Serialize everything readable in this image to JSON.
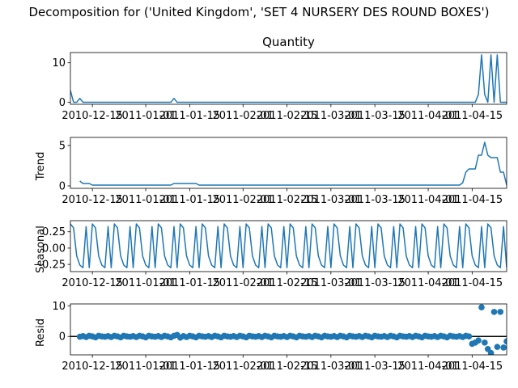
{
  "figure": {
    "suptitle": "Decomposition for ('United Kingdom', 'SET 4 NURSERY DES ROUND BOXES')",
    "line_color": "#1f77b4"
  },
  "x_tick_labels": [
    "2010-12-15",
    "2011-01-01",
    "2011-01-15",
    "2011-02-01",
    "2011-02-15",
    "2011-03-01",
    "2011-03-15",
    "2011-04-01",
    "2011-04-15"
  ],
  "chart_data": [
    {
      "type": "line",
      "title": "Quantity",
      "ylabel": "",
      "x_start": "2010-12-08",
      "x_end": "2011-04-26",
      "ylim": [
        -0.5,
        12.6
      ],
      "yticks": [
        0,
        10
      ],
      "values": [
        3,
        0,
        0,
        1,
        0,
        0,
        0,
        0,
        0,
        0,
        0,
        0,
        0,
        0,
        0,
        0,
        0,
        0,
        0,
        0,
        0,
        0,
        0,
        0,
        0,
        0,
        0,
        0,
        0,
        0,
        0,
        0,
        0,
        1,
        0,
        0,
        0,
        0,
        0,
        0,
        0,
        0,
        0,
        0,
        0,
        0,
        0,
        0,
        0,
        0,
        0,
        0,
        0,
        0,
        0,
        0,
        0,
        0,
        0,
        0,
        0,
        0,
        0,
        0,
        0,
        0,
        0,
        0,
        0,
        0,
        0,
        0,
        0,
        0,
        0,
        0,
        0,
        0,
        0,
        0,
        0,
        0,
        0,
        0,
        0,
        0,
        0,
        0,
        0,
        0,
        0,
        0,
        0,
        0,
        0,
        0,
        0,
        0,
        0,
        0,
        0,
        0,
        0,
        0,
        0,
        0,
        0,
        0,
        0,
        0,
        0,
        0,
        0,
        0,
        0,
        0,
        0,
        0,
        0,
        0,
        0,
        0,
        0,
        0,
        0,
        0,
        0,
        0,
        0,
        0,
        2,
        12,
        2,
        0,
        12,
        0,
        12,
        0,
        0,
        0,
        0,
        0,
        0,
        0,
        0,
        10
      ]
    },
    {
      "type": "line",
      "title": "",
      "ylabel": "Trend",
      "x_start": "2010-12-08",
      "x_end": "2011-04-26",
      "ylim": [
        -0.3,
        6.0
      ],
      "yticks": [
        0,
        5
      ],
      "values": [
        null,
        null,
        null,
        0.6,
        0.3,
        0.3,
        0.3,
        0.1,
        0.1,
        0.1,
        0.1,
        0.1,
        0.1,
        0.1,
        0.1,
        0.1,
        0.1,
        0.1,
        0.1,
        0.1,
        0.1,
        0.1,
        0.1,
        0.1,
        0.1,
        0.1,
        0.1,
        0.1,
        0.1,
        0.1,
        0.1,
        0.1,
        0.1,
        0.3,
        0.3,
        0.3,
        0.3,
        0.3,
        0.3,
        0.3,
        0.3,
        0.1,
        0.1,
        0.1,
        0.1,
        0.1,
        0.1,
        0.1,
        0.1,
        0.1,
        0.1,
        0.1,
        0.1,
        0.1,
        0.1,
        0.1,
        0.1,
        0.1,
        0.1,
        0.1,
        0.1,
        0.1,
        0.1,
        0.1,
        0.1,
        0.1,
        0.1,
        0.1,
        0.1,
        0.1,
        0.1,
        0.1,
        0.1,
        0.1,
        0.1,
        0.1,
        0.1,
        0.1,
        0.1,
        0.1,
        0.1,
        0.1,
        0.1,
        0.1,
        0.1,
        0.1,
        0.1,
        0.1,
        0.1,
        0.1,
        0.1,
        0.1,
        0.1,
        0.1,
        0.1,
        0.1,
        0.1,
        0.1,
        0.1,
        0.1,
        0.1,
        0.1,
        0.1,
        0.1,
        0.1,
        0.1,
        0.1,
        0.1,
        0.1,
        0.1,
        0.1,
        0.1,
        0.1,
        0.1,
        0.1,
        0.1,
        0.1,
        0.1,
        0.1,
        0.1,
        0.1,
        0.1,
        0.1,
        0.1,
        0.1,
        0.4,
        1.7,
        2.1,
        2.1,
        2.1,
        3.8,
        3.8,
        5.4,
        3.8,
        3.5,
        3.5,
        3.5,
        1.7,
        1.7,
        0.1,
        0.1,
        0.1,
        1.4,
        null,
        null,
        null
      ]
    },
    {
      "type": "line",
      "title": "",
      "ylabel": "Seasonal",
      "x_start": "2010-12-08",
      "x_end": "2011-04-26",
      "ylim": [
        -0.36,
        0.42
      ],
      "yticks": [
        0.25,
        0.0,
        -0.25
      ],
      "ytick_labels": [
        "0.25",
        "0.00",
        "−0.25"
      ],
      "period_pattern": [
        0.37,
        0.31,
        -0.12,
        -0.26,
        -0.3,
        0.33,
        -0.3
      ]
    },
    {
      "type": "scatter",
      "title": "",
      "ylabel": "Resid",
      "x_start": "2010-12-08",
      "x_end": "2011-04-26",
      "ylim": [
        -6.0,
        10.6
      ],
      "yticks": [
        0,
        10
      ],
      "zero_line": true,
      "values": [
        null,
        null,
        null,
        -0.1,
        0.1,
        -0.2,
        0.2,
        0.0,
        -0.3,
        0.2,
        0.0,
        -0.1,
        0.1,
        -0.2,
        0.2,
        0.0,
        -0.3,
        0.2,
        0.0,
        -0.1,
        0.1,
        -0.2,
        0.2,
        0.0,
        -0.3,
        0.2,
        0.0,
        -0.1,
        0.1,
        -0.2,
        0.2,
        0.0,
        -0.3,
        0.2,
        0.5,
        -0.4,
        0.1,
        -0.2,
        0.2,
        0.0,
        -0.3,
        0.2,
        0.0,
        -0.1,
        0.1,
        -0.2,
        0.2,
        0.0,
        -0.3,
        0.2,
        0.0,
        -0.1,
        0.1,
        -0.2,
        0.2,
        0.0,
        -0.3,
        0.2,
        0.0,
        -0.1,
        0.1,
        -0.2,
        0.2,
        0.0,
        -0.3,
        0.2,
        0.0,
        -0.1,
        0.1,
        -0.2,
        0.2,
        0.0,
        -0.3,
        0.2,
        0.0,
        -0.1,
        0.1,
        -0.2,
        0.2,
        0.0,
        -0.3,
        0.2,
        0.0,
        -0.1,
        0.1,
        -0.2,
        0.2,
        0.0,
        -0.3,
        0.2,
        0.0,
        -0.1,
        0.1,
        -0.2,
        0.2,
        0.0,
        -0.3,
        0.2,
        0.0,
        -0.1,
        0.1,
        -0.2,
        0.2,
        0.0,
        -0.3,
        0.2,
        0.0,
        -0.1,
        0.1,
        -0.2,
        0.2,
        0.0,
        -0.3,
        0.2,
        0.0,
        -0.1,
        0.1,
        -0.2,
        0.2,
        0.0,
        -0.3,
        0.2,
        0.0,
        -0.1,
        0.1,
        -0.2,
        0.2,
        0.0,
        -2.4,
        -2.0,
        -1.3,
        9.5,
        -2.0,
        -4.1,
        -5.4,
        8.0,
        -3.4,
        8.0,
        -3.6,
        -1.6,
        -1.4,
        0.3,
        -0.2,
        0.2,
        -2.2,
        null,
        null,
        null
      ]
    }
  ]
}
